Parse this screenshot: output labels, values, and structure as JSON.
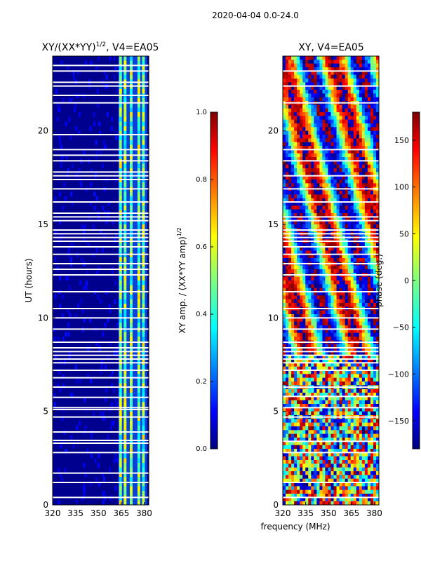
{
  "figure": {
    "suptitle": "2020-04-04 0.0-24.0",
    "shared_xlabel": "frequency (MHz)"
  },
  "chart_data": [
    {
      "type": "heatmap",
      "title": "XY/(XX*YY)^{1/2}, V4=EA05",
      "title_main": "XY/(XX*YY)",
      "title_sup": "1/2",
      "title_tail": ", V4=EA05",
      "xlabel": "",
      "ylabel": "UT (hours)",
      "xlim": [
        320,
        383
      ],
      "ylim": [
        0,
        24
      ],
      "xticks": [
        320,
        335,
        350,
        365,
        380
      ],
      "yticks": [
        0,
        5,
        10,
        15,
        20
      ],
      "colormap": "jet",
      "value_description": "normalized amplitude, low (~0.05) across 320–363 MHz, elevated (0.3–0.7) in bright vertical stripes 363–382 MHz",
      "bright_channel_centers_mhz": [
        364.5,
        367.5,
        371.5,
        376.5,
        379.5
      ],
      "flagged_ut_hours": [
        0.4,
        1.2,
        1.7,
        2.8,
        3.3,
        3.45,
        3.9,
        4.7,
        5.1,
        5.2,
        5.75,
        6.3,
        6.8,
        7.2,
        7.6,
        7.8,
        8.0,
        8.2,
        8.4,
        8.7,
        9.4,
        10.0,
        10.5,
        11.4,
        12.3,
        12.6,
        12.9,
        13.4,
        13.8,
        14.1,
        14.3,
        14.5,
        14.7,
        15.2,
        15.4,
        15.6,
        16.2,
        16.9,
        17.4,
        17.6,
        17.8,
        18.4,
        18.7,
        19.0,
        19.8,
        21.5,
        21.9,
        22.4,
        22.6,
        23.2,
        23.5
      ],
      "colorbar": {
        "label": "XY amp. / (XX*YY amp)^{1/2}",
        "label_main": "XY amp. / (XX*YY amp)",
        "label_sup": "1/2",
        "min": 0.0,
        "max": 1.0,
        "ticks": [
          "0.0",
          "0.2",
          "0.4",
          "0.6",
          "0.8",
          "1.0"
        ]
      }
    },
    {
      "type": "heatmap",
      "title": "XY, V4=EA05",
      "xlabel": "frequency (MHz)",
      "ylabel": "",
      "xlim": [
        320,
        383
      ],
      "ylim": [
        0,
        24
      ],
      "xticks": [
        320,
        335,
        350,
        365,
        380
      ],
      "yticks": [
        0,
        5,
        10,
        15,
        20
      ],
      "colormap": "jet",
      "value_description": "phase in degrees, wrapping between -180 and 180, noisy below 8 UT, smoother bands above",
      "flagged_ut_hours": [
        0.4,
        1.2,
        2.8,
        3.4,
        4.7,
        5.2,
        5.8,
        6.3,
        7.2,
        7.6,
        7.8,
        8.0,
        8.2,
        8.4,
        8.7,
        9.4,
        10.0,
        10.5,
        11.4,
        12.3,
        12.9,
        13.4,
        13.8,
        14.1,
        14.3,
        14.5,
        14.7,
        15.2,
        15.4,
        16.2,
        16.9,
        17.6,
        18.4,
        19.0,
        21.5,
        22.4,
        23.2
      ],
      "colorbar": {
        "label": "phase (deg.)",
        "min": -180,
        "max": 180,
        "ticks": [
          "150",
          "100",
          "50",
          "0",
          "−50",
          "−100",
          "−150"
        ],
        "tick_values": [
          150,
          100,
          50,
          0,
          -50,
          -100,
          -150
        ]
      }
    }
  ]
}
